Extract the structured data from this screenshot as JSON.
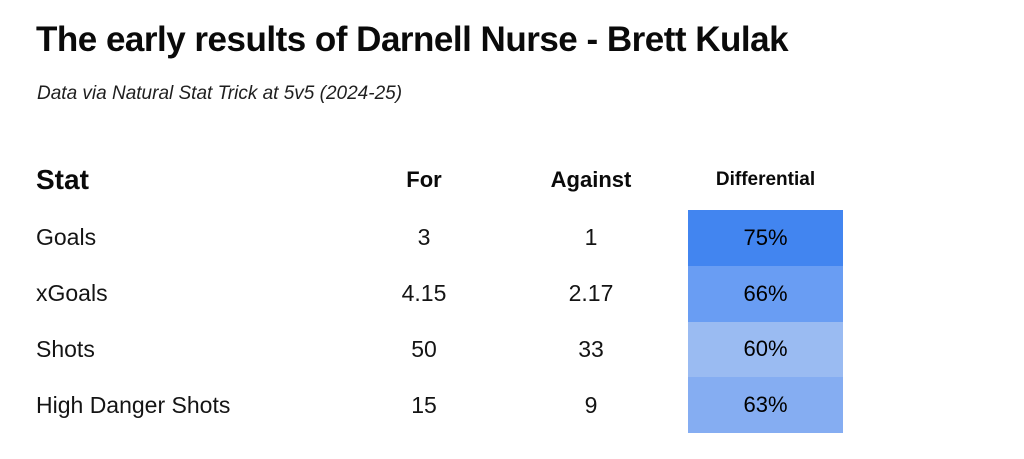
{
  "title": "The early results of Darnell Nurse - Brett Kulak",
  "subtitle": "Data via Natural Stat Trick at 5v5 (2024-25)",
  "chart_data": {
    "type": "table",
    "title": "The early results of Darnell Nurse - Brett Kulak",
    "subtitle": "Data via Natural Stat Trick at 5v5 (2024-25)",
    "columns": [
      "Stat",
      "For",
      "Against",
      "Differential"
    ],
    "rows": [
      {
        "stat": "Goals",
        "for": "3",
        "against": "1",
        "differential": "75%",
        "differential_color": "#4285f0"
      },
      {
        "stat": "xGoals",
        "for": "4.15",
        "against": "2.17",
        "differential": "66%",
        "differential_color": "#699df3"
      },
      {
        "stat": "Shots",
        "for": "50",
        "against": "33",
        "differential": "60%",
        "differential_color": "#9abbf2"
      },
      {
        "stat": "High Danger Shots",
        "for": "15",
        "against": "9",
        "differential": "63%",
        "differential_color": "#85adf2"
      }
    ],
    "layout": {
      "heat_scale_note": "differential cells shaded blue, darker = higher percentage",
      "min_color": "#9abbf2",
      "max_color": "#4285f0"
    }
  }
}
